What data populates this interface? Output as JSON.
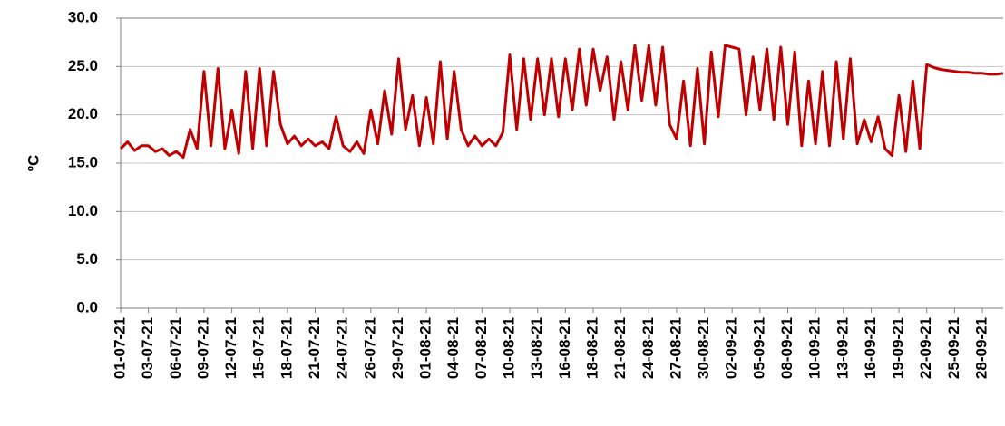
{
  "chart_data": {
    "type": "line",
    "y_label": "ºC",
    "categories": [
      "01-07-21",
      null,
      null,
      null,
      "03-07-21",
      null,
      null,
      null,
      "06-07-21",
      null,
      null,
      null,
      "09-07-21",
      null,
      null,
      null,
      "12-07-21",
      null,
      null,
      null,
      "15-07-21",
      null,
      null,
      null,
      "18-07-21",
      null,
      null,
      null,
      "21-07-21",
      null,
      null,
      null,
      "24-07-21",
      null,
      null,
      null,
      "26-07-21",
      null,
      null,
      null,
      "29-07-21",
      null,
      null,
      null,
      "01-08-21",
      null,
      null,
      null,
      "04-08-21",
      null,
      null,
      null,
      "07-08-21",
      null,
      null,
      null,
      "10-08-21",
      null,
      null,
      null,
      "13-08-21",
      null,
      null,
      null,
      "16-08-21",
      null,
      null,
      null,
      "18-08-21",
      null,
      null,
      null,
      "21-08-21",
      null,
      null,
      null,
      "24-08-21",
      null,
      null,
      null,
      "27-08-21",
      null,
      null,
      null,
      "30-08-21",
      null,
      null,
      null,
      "02-09-21",
      null,
      null,
      null,
      "05-09-21",
      null,
      null,
      null,
      "08-09-21",
      null,
      null,
      null,
      "10-09-21",
      null,
      null,
      null,
      "13-09-21",
      null,
      null,
      null,
      "16-09-21",
      null,
      null,
      null,
      "19-09-21",
      null,
      null,
      null,
      "22-09-21",
      null,
      null,
      null,
      "25-09-21",
      null,
      null,
      null,
      "28-09-21",
      null,
      null,
      null
    ],
    "series": [
      {
        "color": "#c00000",
        "values": [
          16.5,
          17.2,
          16.3,
          16.8,
          16.8,
          16.2,
          16.5,
          15.8,
          16.2,
          15.6,
          18.5,
          16.5,
          24.5,
          16.8,
          24.8,
          16.5,
          20.5,
          16.0,
          24.5,
          16.5,
          24.8,
          16.8,
          24.5,
          19.0,
          17.0,
          17.8,
          16.8,
          17.5,
          16.8,
          17.2,
          16.5,
          19.8,
          16.8,
          16.2,
          17.2,
          16.0,
          20.5,
          17.0,
          22.5,
          18.0,
          25.8,
          18.5,
          22.0,
          16.8,
          21.8,
          17.0,
          25.5,
          17.5,
          24.5,
          18.5,
          16.8,
          17.8,
          16.8,
          17.5,
          16.8,
          18.2,
          26.2,
          18.5,
          25.8,
          19.5,
          25.8,
          20.0,
          25.8,
          19.8,
          25.8,
          20.5,
          26.8,
          21.0,
          26.8,
          22.5,
          26.0,
          19.5,
          25.5,
          20.5,
          27.2,
          21.5,
          27.2,
          21.0,
          27.0,
          19.0,
          17.5,
          23.5,
          16.8,
          24.8,
          17.0,
          26.5,
          19.8,
          27.2,
          27.0,
          26.8,
          20.0,
          26.0,
          20.5,
          26.8,
          19.5,
          27.0,
          19.0,
          26.5,
          16.8,
          23.5,
          17.0,
          24.5,
          16.8,
          25.5,
          17.5,
          25.8,
          17.0,
          19.5,
          17.2,
          19.8,
          16.5,
          15.8,
          22.0,
          16.2,
          23.5,
          16.5,
          25.2,
          24.9,
          24.7,
          24.6,
          24.5,
          24.4,
          24.4,
          24.3,
          24.3,
          24.2,
          24.2,
          24.3
        ]
      }
    ],
    "ylim": [
      0,
      30
    ],
    "yticks": [
      {
        "value": 0,
        "label": "0.0"
      },
      {
        "value": 5,
        "label": "5.0"
      },
      {
        "value": 10,
        "label": "10.0"
      },
      {
        "value": 15,
        "label": "15.0"
      },
      {
        "value": 20,
        "label": "20.0"
      },
      {
        "value": 25,
        "label": "25.0"
      },
      {
        "value": 30,
        "label": "30.0"
      }
    ],
    "grid": true
  }
}
